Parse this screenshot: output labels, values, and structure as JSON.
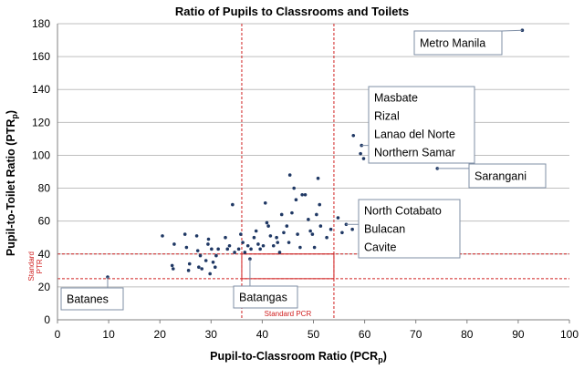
{
  "chart_data": {
    "type": "scatter",
    "title": "Ratio of Pupils to Classrooms and Toilets",
    "xlabel": "Pupil-to-Classroom Ratio (PCR",
    "xlabel_sub": "p",
    "xlabel_close": ")",
    "ylabel": "Pupil-to-Toilet  Ratio (PTR",
    "ylabel_sub": "p",
    "ylabel_close": ")",
    "xlim": [
      0,
      100
    ],
    "ylim": [
      0,
      180
    ],
    "xticks": [
      0,
      10,
      20,
      30,
      40,
      50,
      60,
      70,
      80,
      90,
      100
    ],
    "yticks": [
      0,
      20,
      40,
      60,
      80,
      100,
      120,
      140,
      160,
      180
    ],
    "grid": "horizontal",
    "marker_color": "#1f3864",
    "reference_color": "#d02020",
    "reference_lines": {
      "pcr": {
        "label": "Standard PCR",
        "values": [
          36,
          54
        ]
      },
      "ptr": {
        "label_line1": "Standard",
        "label_line2": "PTR",
        "values": [
          25,
          40
        ]
      }
    },
    "highlight_box": {
      "x": [
        36,
        54
      ],
      "y": [
        25,
        40
      ]
    },
    "points": [
      {
        "x": 90.8,
        "y": 176
      },
      {
        "x": 57.8,
        "y": 112
      },
      {
        "x": 59.4,
        "y": 106
      },
      {
        "x": 59.2,
        "y": 101
      },
      {
        "x": 59.8,
        "y": 98
      },
      {
        "x": 74.2,
        "y": 92
      },
      {
        "x": 9.8,
        "y": 26
      },
      {
        "x": 37.6,
        "y": 37
      },
      {
        "x": 54.8,
        "y": 62
      },
      {
        "x": 56.4,
        "y": 58
      },
      {
        "x": 55.6,
        "y": 53
      },
      {
        "x": 57.6,
        "y": 55
      },
      {
        "x": 20.5,
        "y": 51
      },
      {
        "x": 22.4,
        "y": 33
      },
      {
        "x": 22.6,
        "y": 31
      },
      {
        "x": 22.8,
        "y": 46
      },
      {
        "x": 24.9,
        "y": 52
      },
      {
        "x": 25.2,
        "y": 44
      },
      {
        "x": 25.8,
        "y": 34
      },
      {
        "x": 25.6,
        "y": 30
      },
      {
        "x": 27.2,
        "y": 51
      },
      {
        "x": 27.4,
        "y": 42
      },
      {
        "x": 27.6,
        "y": 32
      },
      {
        "x": 27.9,
        "y": 39
      },
      {
        "x": 28.2,
        "y": 31
      },
      {
        "x": 29.0,
        "y": 36
      },
      {
        "x": 29.4,
        "y": 46
      },
      {
        "x": 29.5,
        "y": 49
      },
      {
        "x": 29.8,
        "y": 28
      },
      {
        "x": 30.1,
        "y": 43
      },
      {
        "x": 30.4,
        "y": 35
      },
      {
        "x": 30.8,
        "y": 32
      },
      {
        "x": 31.0,
        "y": 39
      },
      {
        "x": 31.4,
        "y": 43
      },
      {
        "x": 32.8,
        "y": 50
      },
      {
        "x": 33.2,
        "y": 43
      },
      {
        "x": 33.6,
        "y": 45
      },
      {
        "x": 34.2,
        "y": 70
      },
      {
        "x": 34.6,
        "y": 41
      },
      {
        "x": 35.4,
        "y": 43
      },
      {
        "x": 35.8,
        "y": 52
      },
      {
        "x": 36.2,
        "y": 47
      },
      {
        "x": 36.6,
        "y": 41
      },
      {
        "x": 37.2,
        "y": 45
      },
      {
        "x": 37.8,
        "y": 43
      },
      {
        "x": 38.4,
        "y": 50
      },
      {
        "x": 38.8,
        "y": 54
      },
      {
        "x": 39.2,
        "y": 46
      },
      {
        "x": 39.6,
        "y": 43
      },
      {
        "x": 40.2,
        "y": 45
      },
      {
        "x": 40.6,
        "y": 71
      },
      {
        "x": 40.9,
        "y": 59
      },
      {
        "x": 41.2,
        "y": 57
      },
      {
        "x": 41.6,
        "y": 51
      },
      {
        "x": 42.2,
        "y": 45
      },
      {
        "x": 42.8,
        "y": 50
      },
      {
        "x": 43.0,
        "y": 47
      },
      {
        "x": 43.4,
        "y": 41
      },
      {
        "x": 43.8,
        "y": 64
      },
      {
        "x": 44.2,
        "y": 53
      },
      {
        "x": 44.8,
        "y": 57
      },
      {
        "x": 45.2,
        "y": 47
      },
      {
        "x": 45.4,
        "y": 88
      },
      {
        "x": 45.8,
        "y": 65
      },
      {
        "x": 46.2,
        "y": 80
      },
      {
        "x": 46.6,
        "y": 73
      },
      {
        "x": 46.9,
        "y": 52
      },
      {
        "x": 47.4,
        "y": 44
      },
      {
        "x": 47.8,
        "y": 76
      },
      {
        "x": 48.4,
        "y": 76
      },
      {
        "x": 49.0,
        "y": 61
      },
      {
        "x": 49.4,
        "y": 54
      },
      {
        "x": 49.8,
        "y": 52
      },
      {
        "x": 50.2,
        "y": 44
      },
      {
        "x": 50.6,
        "y": 64
      },
      {
        "x": 50.9,
        "y": 86
      },
      {
        "x": 51.2,
        "y": 70
      },
      {
        "x": 51.4,
        "y": 57
      },
      {
        "x": 52.6,
        "y": 50
      },
      {
        "x": 53.4,
        "y": 55
      }
    ],
    "callouts": [
      {
        "lines": [
          "Metro Manila"
        ],
        "target": {
          "x": 90.8,
          "y": 176
        }
      },
      {
        "lines": [
          "Masbate",
          "Rizal",
          "Lanao del Norte",
          "Northern Samar"
        ],
        "target": {
          "x": 59.4,
          "y": 106
        }
      },
      {
        "lines": [
          "Sarangani"
        ],
        "target": {
          "x": 74.2,
          "y": 92
        }
      },
      {
        "lines": [
          "North Cotabato",
          "Bulacan",
          "Cavite"
        ],
        "target": {
          "x": 56.4,
          "y": 58
        }
      },
      {
        "lines": [
          "Batanes"
        ],
        "target": {
          "x": 9.8,
          "y": 26
        }
      },
      {
        "lines": [
          "Batangas"
        ],
        "target": {
          "x": 37.6,
          "y": 37
        }
      }
    ]
  }
}
